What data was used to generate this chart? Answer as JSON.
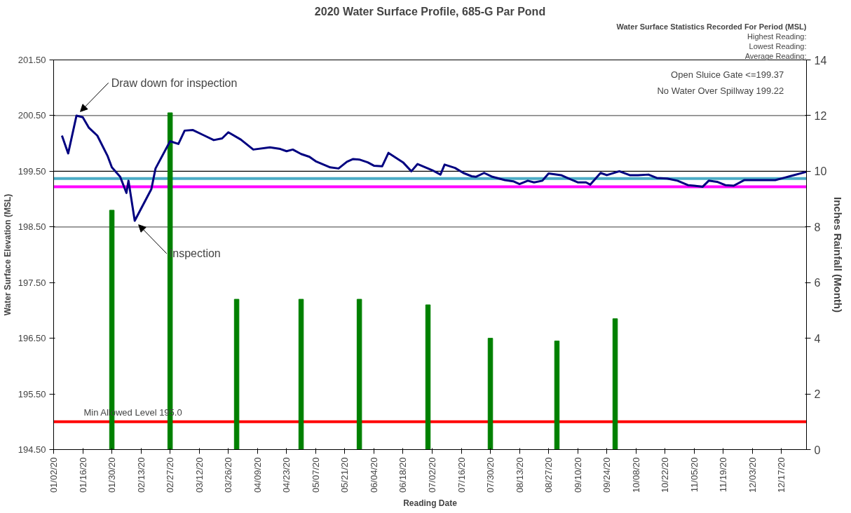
{
  "chart_data": {
    "type": "line",
    "title": "2020 Water Surface Profile, 685-G Par Pond",
    "xlabel": "Reading Date",
    "ylabel": "Water Surface Elevation (MSL)",
    "y2label": "Inches Rainfall (Month)",
    "xlim": [
      "2020-01-02",
      "2020-12-29"
    ],
    "xticks": [
      {
        "value": "2020-01-02",
        "label": "01/02/20"
      },
      {
        "value": "2020-01-16",
        "label": "01/16/20"
      },
      {
        "value": "2020-01-30",
        "label": "01/30/20"
      },
      {
        "value": "2020-02-13",
        "label": "02/13/20"
      },
      {
        "value": "2020-02-27",
        "label": "02/27/20"
      },
      {
        "value": "2020-03-12",
        "label": "03/12/20"
      },
      {
        "value": "2020-03-26",
        "label": "03/26/20"
      },
      {
        "value": "2020-04-09",
        "label": "04/09/20"
      },
      {
        "value": "2020-04-23",
        "label": "04/23/20"
      },
      {
        "value": "2020-05-07",
        "label": "05/07/20"
      },
      {
        "value": "2020-05-21",
        "label": "05/21/20"
      },
      {
        "value": "2020-06-04",
        "label": "06/04/20"
      },
      {
        "value": "2020-06-18",
        "label": "06/18/20"
      },
      {
        "value": "2020-07-02",
        "label": "07/02/20"
      },
      {
        "value": "2020-07-16",
        "label": "07/16/20"
      },
      {
        "value": "2020-07-30",
        "label": "07/30/20"
      },
      {
        "value": "2020-08-13",
        "label": "08/13/20"
      },
      {
        "value": "2020-08-27",
        "label": "08/27/20"
      },
      {
        "value": "2020-09-10",
        "label": "09/10/20"
      },
      {
        "value": "2020-09-24",
        "label": "09/24/20"
      },
      {
        "value": "2020-10-08",
        "label": "10/08/20"
      },
      {
        "value": "2020-10-22",
        "label": "10/22/20"
      },
      {
        "value": "2020-11-05",
        "label": "11/05/20"
      },
      {
        "value": "2020-11-19",
        "label": "11/19/20"
      },
      {
        "value": "2020-12-03",
        "label": "12/03/20"
      },
      {
        "value": "2020-12-17",
        "label": "12/17/20"
      }
    ],
    "ylim": [
      194.5,
      201.5
    ],
    "yticks": [
      {
        "value": 194.5,
        "label": "194.50"
      },
      {
        "value": 195.5,
        "label": "195.50"
      },
      {
        "value": 196.5,
        "label": "196.50"
      },
      {
        "value": 197.5,
        "label": "197.50"
      },
      {
        "value": 198.5,
        "label": "198.50"
      },
      {
        "value": 199.5,
        "label": "199.50"
      },
      {
        "value": 200.5,
        "label": "200.50"
      },
      {
        "value": 201.5,
        "label": "201.50"
      }
    ],
    "y2lim": [
      0,
      14
    ],
    "y2ticks": [
      0,
      2,
      4,
      6,
      8,
      10,
      12,
      14
    ],
    "series": [
      {
        "color": "#000080",
        "x": [
          "2020-01-06",
          "2020-01-09",
          "2020-01-13",
          "2020-01-16",
          "2020-01-19",
          "2020-01-23",
          "2020-01-28",
          "2020-01-30",
          "2020-02-03",
          "2020-02-06",
          "2020-02-07",
          "2020-02-10",
          "2020-02-18",
          "2020-02-20",
          "2020-02-27",
          "2020-03-02",
          "2020-03-05",
          "2020-03-09",
          "2020-03-14",
          "2020-03-19",
          "2020-03-23",
          "2020-03-26",
          "2020-04-01",
          "2020-04-07",
          "2020-04-15",
          "2020-04-20",
          "2020-04-23",
          "2020-04-26",
          "2020-04-30",
          "2020-05-04",
          "2020-05-07",
          "2020-05-14",
          "2020-05-18",
          "2020-05-22",
          "2020-05-25",
          "2020-05-28",
          "2020-06-01",
          "2020-06-04",
          "2020-06-08",
          "2020-06-11",
          "2020-06-18",
          "2020-06-22",
          "2020-06-25",
          "2020-07-02",
          "2020-07-06",
          "2020-07-08",
          "2020-07-13",
          "2020-07-17",
          "2020-07-21",
          "2020-07-23",
          "2020-07-27",
          "2020-07-31",
          "2020-08-06",
          "2020-08-10",
          "2020-08-13",
          "2020-08-17",
          "2020-08-20",
          "2020-08-24",
          "2020-08-27",
          "2020-09-02",
          "2020-09-05",
          "2020-09-10",
          "2020-09-14",
          "2020-09-16",
          "2020-09-21",
          "2020-09-24",
          "2020-09-30",
          "2020-10-05",
          "2020-10-09",
          "2020-10-14",
          "2020-10-18",
          "2020-10-23",
          "2020-10-28",
          "2020-11-02",
          "2020-11-05",
          "2020-11-09",
          "2020-11-12",
          "2020-11-16",
          "2020-11-20",
          "2020-11-24",
          "2020-11-29",
          "2020-12-03",
          "2020-12-14",
          "2020-12-18",
          "2020-12-21",
          "2020-12-29"
        ],
        "values": [
          200.14,
          199.82,
          200.5,
          200.47,
          200.28,
          200.14,
          199.77,
          199.57,
          199.4,
          199.11,
          199.33,
          198.61,
          199.18,
          199.55,
          200.04,
          199.99,
          200.23,
          200.24,
          200.15,
          200.06,
          200.09,
          200.2,
          200.07,
          199.89,
          199.93,
          199.9,
          199.86,
          199.89,
          199.81,
          199.76,
          199.68,
          199.57,
          199.55,
          199.67,
          199.72,
          199.71,
          199.66,
          199.6,
          199.59,
          199.83,
          199.66,
          199.5,
          199.63,
          199.52,
          199.44,
          199.62,
          199.56,
          199.47,
          199.41,
          199.4,
          199.47,
          199.4,
          199.34,
          199.32,
          199.27,
          199.33,
          199.3,
          199.33,
          199.46,
          199.43,
          199.38,
          199.3,
          199.3,
          199.26,
          199.47,
          199.43,
          199.5,
          199.43,
          199.43,
          199.44,
          199.38,
          199.37,
          199.33,
          199.25,
          199.24,
          199.22,
          199.33,
          199.31,
          199.25,
          199.24,
          199.34,
          199.34,
          199.34,
          199.38,
          199.41,
          199.49
        ]
      },
      {
        "type": "bar",
        "axis": "y2",
        "color": "#008000",
        "x": [
          "2020-01-30",
          "2020-02-27",
          "2020-03-30",
          "2020-04-30",
          "2020-05-28",
          "2020-06-30",
          "2020-07-30",
          "2020-08-31",
          "2020-09-28"
        ],
        "values": [
          8.6,
          12.1,
          5.4,
          5.4,
          5.4,
          5.2,
          4.0,
          3.9,
          4.7
        ]
      }
    ],
    "ref_lines": [
      {
        "axis": "y",
        "value": 200.5,
        "color": "#606060"
      },
      {
        "axis": "y",
        "value": 199.5,
        "color": "#000000"
      },
      {
        "axis": "y",
        "value": 198.5,
        "color": "#606060"
      },
      {
        "axis": "y",
        "value": 199.37,
        "color": "#4bacc6"
      },
      {
        "axis": "y",
        "value": 199.22,
        "color": "#ff00ff"
      },
      {
        "axis": "y",
        "value": 195.0,
        "color": "#ff0000",
        "label": "Min Allowed Level 195.0"
      }
    ],
    "annotations": [
      "Water Surface Statistics Recorded For Period (MSL)",
      "Highest Reading:",
      "Lowest Reading:",
      "Average Reading:",
      "Open Sluice Gate <=199.37",
      "No Water Over Spillway 199.22",
      {
        "text": "Draw down for inspection",
        "x": "2020-01-13",
        "y": 200.5
      },
      {
        "text": "Inspection",
        "x": "2020-02-10",
        "y": 198.61
      }
    ]
  }
}
